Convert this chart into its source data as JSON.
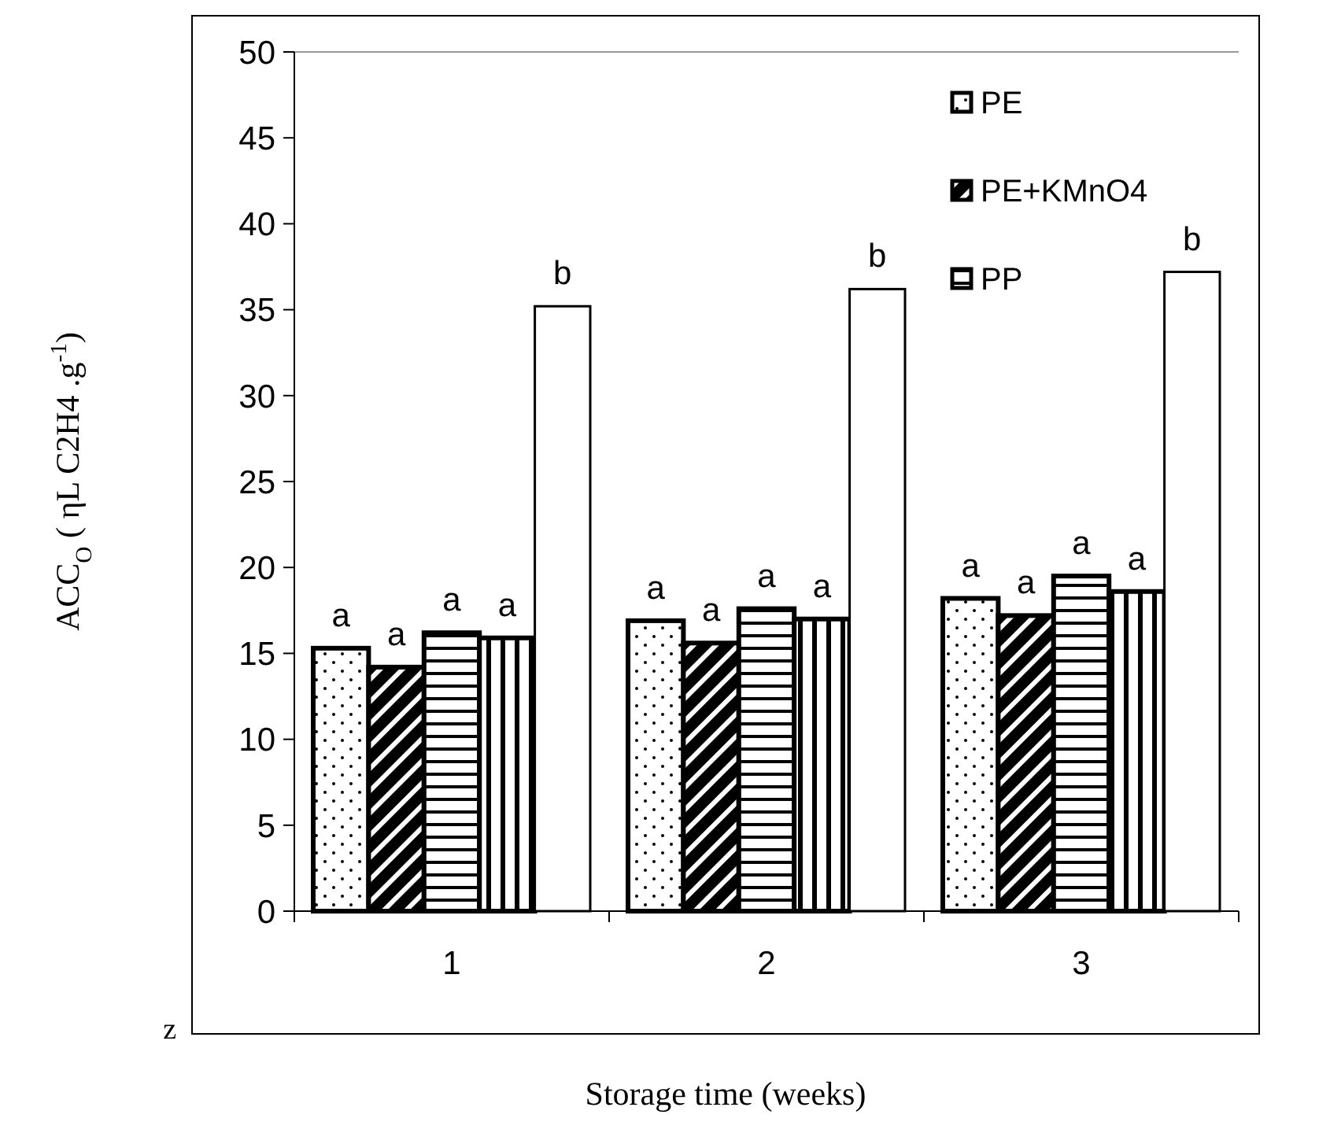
{
  "chart_data": {
    "type": "bar",
    "xlabel": "Storage time (weeks)",
    "ylabel": "ACC$_{O}$ ( ηL C2H4 .g$^{-1}$)",
    "categories": [
      "1",
      "2",
      "3"
    ],
    "series": [
      {
        "name": "PE",
        "color": "#000000",
        "values": [
          15.3,
          16.9,
          18.2
        ]
      },
      {
        "name": "PE+KMnO4",
        "color": "#000000",
        "values": [
          14.2,
          15.6,
          17.2
        ]
      },
      {
        "name": "PP",
        "color": "#000000",
        "values": [
          16.2,
          17.6,
          19.5
        ]
      },
      {
        "color": "#000000",
        "values": [
          15.9,
          17.0,
          18.6
        ]
      },
      {
        "color": "#000000",
        "values": [
          35.2,
          36.2,
          37.2
        ]
      }
    ],
    "ylim": [
      0,
      50
    ],
    "yticks": [
      0,
      5,
      10,
      15,
      20,
      25,
      30,
      35,
      40,
      45,
      50
    ],
    "grid": false,
    "legend": "top right",
    "annotations": [
      "a",
      "a",
      "a",
      "a",
      "b",
      "a",
      "a",
      "a",
      "a",
      "b",
      "a",
      "a",
      "a",
      "a",
      "b",
      "z"
    ]
  }
}
